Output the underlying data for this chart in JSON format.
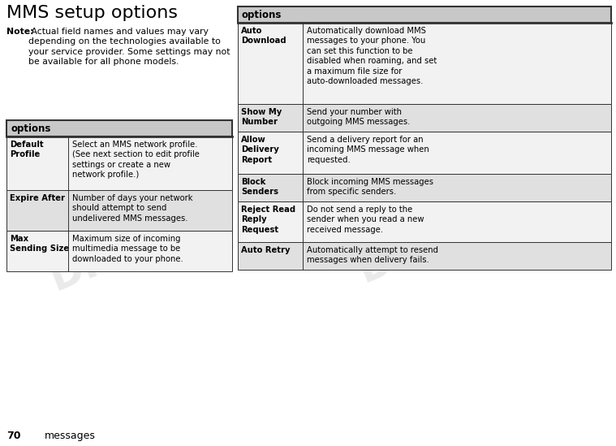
{
  "title": "MMS setup options",
  "note_bold": "Note:",
  "note_rest": " Actual field names and values may vary\ndepending on the technologies available to\nyour service provider. Some settings may not\nbe available for all phone models.",
  "page_num": "70",
  "page_label": "messages",
  "table_header": "options",
  "left_rows": [
    {
      "key": "Default\nProfile",
      "value": "Select an MMS network profile.\n(See next section to edit profile\nsettings or create a new\nnetwork profile.)"
    },
    {
      "key": "Expire After",
      "value": "Number of days your network\nshould attempt to send\nundelivered MMS messages."
    },
    {
      "key": "Max\nSending Size",
      "value": "Maximum size of incoming\nmultimedia message to be\ndownloaded to your phone."
    }
  ],
  "right_rows": [
    {
      "key": "Auto\nDownload",
      "value": "Automatically download MMS\nmessages to your phone. You\ncan set this function to be\ndisabled when roaming, and set\na maximum file size for\nauto-downloaded messages."
    },
    {
      "key": "Show My\nNumber",
      "value": "Send your number with\noutgoing MMS messages."
    },
    {
      "key": "Allow\nDelivery\nReport",
      "value": "Send a delivery report for an\nincoming MMS message when\nrequested."
    },
    {
      "key": "Block\nSenders",
      "value": "Block incoming MMS messages\nfrom specific senders."
    },
    {
      "key": "Reject Read\nReply\nRequest",
      "value": "Do not send a reply to the\nsender when you read a new\nreceived message."
    },
    {
      "key": "Auto Retry",
      "value": "Automatically attempt to resend\nmessages when delivery fails."
    }
  ],
  "bg_color": "#ffffff",
  "header_bg": "#c8c8c8",
  "row_bg_even": "#f2f2f2",
  "row_bg_odd": "#e0e0e0",
  "border_color": "#333333",
  "title_fontsize": 16,
  "header_fontsize": 8.5,
  "key_fontsize": 7.2,
  "value_fontsize": 7.2,
  "note_fontsize": 7.8,
  "draft_color": "#bbbbbb",
  "draft_alpha": 0.3
}
